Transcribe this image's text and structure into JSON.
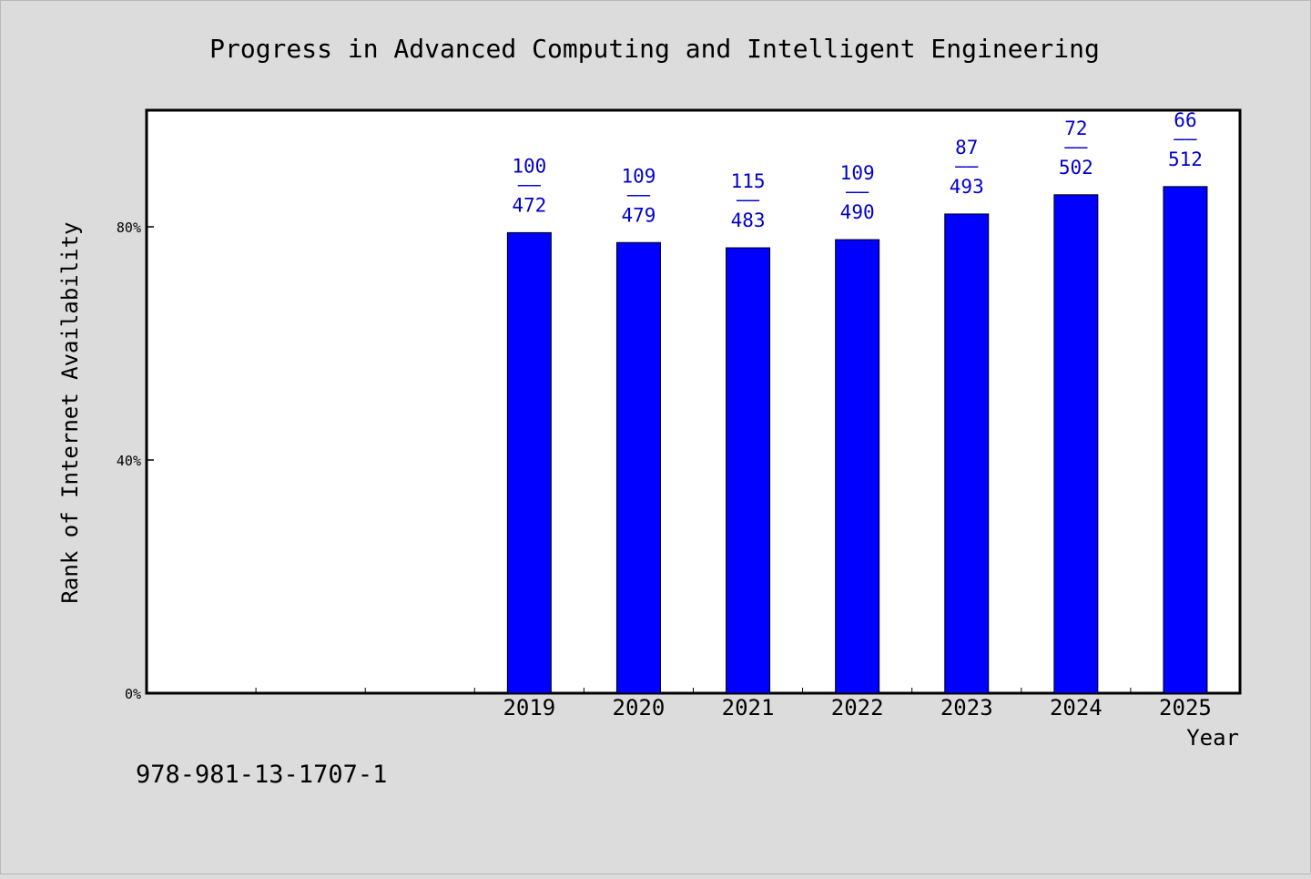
{
  "chart_data": {
    "type": "bar",
    "title": "Progress in Advanced Computing and Intelligent Engineering",
    "xlabel": "Year",
    "ylabel": "Rank of Internet Availability",
    "x_slots": [
      "",
      "",
      "",
      "2019",
      "2020",
      "2021",
      "2022",
      "2023",
      "2024",
      "2025"
    ],
    "categories": [
      "2019",
      "2020",
      "2021",
      "2022",
      "2023",
      "2024",
      "2025"
    ],
    "values": [
      79,
      77.3,
      76.4,
      77.8,
      82.2,
      85.5,
      86.9
    ],
    "value_unit": "%",
    "data_labels": [
      {
        "top": "100",
        "sep": "——",
        "bottom": "472"
      },
      {
        "top": "109",
        "sep": "——",
        "bottom": "479"
      },
      {
        "top": "115",
        "sep": "——",
        "bottom": "483"
      },
      {
        "top": "109",
        "sep": "——",
        "bottom": "490"
      },
      {
        "top": "87",
        "sep": "——",
        "bottom": "493"
      },
      {
        "top": "72",
        "sep": "——",
        "bottom": "502"
      },
      {
        "top": "66",
        "sep": "——",
        "bottom": "512"
      }
    ],
    "ylim": [
      0,
      100
    ],
    "yticks": [
      0,
      40,
      80
    ],
    "ytick_labels": [
      "0%",
      "40%",
      "80%"
    ],
    "grid": false,
    "legend": "none",
    "colors": {
      "bar": "#0000ff",
      "data_label": "#0000cc",
      "plot_background": "#ffffff",
      "page_background": "#dcdcdc"
    }
  },
  "footer": {
    "code": "978-981-13-1707-1"
  }
}
